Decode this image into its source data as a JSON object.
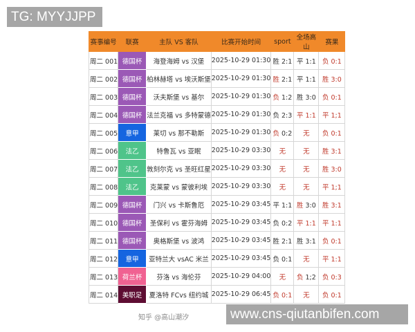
{
  "overlay_top": "TG: MYYJJPP",
  "overlay_bottom": "www.cns-qiutanbifen.com",
  "watermark": "知乎 @高山潮汐",
  "colors": {
    "header": "#f0892a",
    "highlight_text": "#c0392b"
  },
  "league_colors": {
    "德国杯": "#9b59b6",
    "意甲": "#1565e0",
    "法乙": "#4fc48a",
    "荷兰杯": "#f06292",
    "美职足": "#5e0d33"
  },
  "headers": [
    "赛事编号",
    "联赛",
    "主队 VS 客队",
    "比赛开始时间",
    "sport",
    "全场高山",
    "赛果"
  ],
  "rows": [
    {
      "id": "周二 001",
      "league": "德国杯",
      "match": "海登海姆 vs 汉堡",
      "time": "2025-10-29 01:30",
      "sport": {
        "p": "胜",
        "s": " 2:1",
        "hl": "none"
      },
      "full": {
        "p": "平",
        "s": " 1:1",
        "hl": "none"
      },
      "result": {
        "p": "负",
        "s": " 0:1",
        "hl": "all"
      }
    },
    {
      "id": "周二 002",
      "league": "德国杯",
      "match": "柏林赫塔 vs 埃沃斯堡",
      "time": "2025-10-29 01:30",
      "sport": {
        "p": "胜",
        "s": " 2:1",
        "hl": "prefix"
      },
      "full": {
        "p": "平",
        "s": " 1:1",
        "hl": "none"
      },
      "result": {
        "p": "胜",
        "s": " 3:0",
        "hl": "all"
      }
    },
    {
      "id": "周二 003",
      "league": "德国杯",
      "match": "沃夫斯堡 vs 基尔",
      "time": "2025-10-29 01:30",
      "sport": {
        "p": "负",
        "s": " 1:2",
        "hl": "prefix"
      },
      "full": {
        "p": "胜",
        "s": " 3:0",
        "hl": "none"
      },
      "result": {
        "p": "负",
        "s": " 0:1",
        "hl": "all"
      }
    },
    {
      "id": "周二 004",
      "league": "德国杯",
      "match": "法兰克福 vs 多特蒙德",
      "time": "2025-10-29 01:30",
      "sport": {
        "p": "负",
        "s": " 2:3",
        "hl": "none"
      },
      "full": {
        "p": "平",
        "s": " 1:1",
        "hl": "all"
      },
      "result": {
        "p": "平",
        "s": " 1;1",
        "hl": "all"
      }
    },
    {
      "id": "周二 005",
      "league": "意甲",
      "match": "莱切 vs 那不勒斯",
      "time": "2025-10-29 01:30",
      "sport": {
        "p": "负",
        "s": " 0:2",
        "hl": "prefix"
      },
      "full": {
        "p": "无",
        "s": "",
        "hl": "all"
      },
      "result": {
        "p": "负",
        "s": " 0:1",
        "hl": "all"
      }
    },
    {
      "id": "周二 006",
      "league": "法乙",
      "match": "特鲁瓦 vs 亚眠",
      "time": "2025-10-29 03:30",
      "sport": {
        "p": "无",
        "s": "",
        "hl": "all"
      },
      "full": {
        "p": "无",
        "s": "",
        "hl": "all"
      },
      "result": {
        "p": "胜",
        "s": " 3:1",
        "hl": "all"
      }
    },
    {
      "id": "周二 007",
      "league": "法乙",
      "match": "敦刻尔克 vs 圣旺红星",
      "time": "2025-10-29 03:30",
      "sport": {
        "p": "无",
        "s": "",
        "hl": "all"
      },
      "full": {
        "p": "无",
        "s": "",
        "hl": "all"
      },
      "result": {
        "p": "胜",
        "s": " 3:0",
        "hl": "all"
      }
    },
    {
      "id": "周二 008",
      "league": "法乙",
      "match": "克莱蒙 vs 蒙彼利埃",
      "time": "2025-10-29 03:30",
      "sport": {
        "p": "无",
        "s": "",
        "hl": "all"
      },
      "full": {
        "p": "无",
        "s": "",
        "hl": "all"
      },
      "result": {
        "p": "平",
        "s": " 1;1",
        "hl": "all"
      }
    },
    {
      "id": "周二 009",
      "league": "德国杯",
      "match": "门兴 vs 卡斯鲁厄",
      "time": "2025-10-29 03:45",
      "sport": {
        "p": "平",
        "s": " 1:1",
        "hl": "none"
      },
      "full": {
        "p": "胜",
        "s": " 3:0",
        "hl": "prefix"
      },
      "result": {
        "p": "胜",
        "s": " 3:1",
        "hl": "all"
      }
    },
    {
      "id": "周二 010",
      "league": "德国杯",
      "match": "圣保利 vs 霍芬海姆",
      "time": "2025-10-29 03:45",
      "sport": {
        "p": "负",
        "s": " 0:2",
        "hl": "none"
      },
      "full": {
        "p": "平",
        "s": " 1:1",
        "hl": "all"
      },
      "result": {
        "p": "平",
        "s": " 1:1",
        "hl": "all"
      }
    },
    {
      "id": "周二 011",
      "league": "德国杯",
      "match": "奥格斯堡 vs 波鸿",
      "time": "2025-10-29 03:45",
      "sport": {
        "p": "胜",
        "s": " 2:1",
        "hl": "none"
      },
      "full": {
        "p": "胜",
        "s": " 3:1",
        "hl": "none"
      },
      "result": {
        "p": "负",
        "s": " 0:1",
        "hl": "all"
      }
    },
    {
      "id": "周二 012",
      "league": "意甲",
      "match": "亚特兰大 vsAC 米兰",
      "time": "2025-10-29 03:45",
      "sport": {
        "p": "负",
        "s": " 0:1",
        "hl": "none"
      },
      "full": {
        "p": "无",
        "s": "",
        "hl": "all"
      },
      "result": {
        "p": "平",
        "s": " 1:1",
        "hl": "all"
      }
    },
    {
      "id": "周二 013",
      "league": "荷兰杯",
      "match": "芬洛 vs 海伦芬",
      "time": "2025-10-29 04:00",
      "sport": {
        "p": "无",
        "s": "",
        "hl": "all"
      },
      "full": {
        "p": "负",
        "s": " 1;2",
        "hl": "prefix"
      },
      "result": {
        "p": "负",
        "s": " 0:3",
        "hl": "all"
      }
    },
    {
      "id": "周二 014",
      "league": "美职足",
      "match": "夏洛特 FCvs 纽约城",
      "time": "2025-10-29 06:45",
      "sport": {
        "p": "负",
        "s": " 0:1",
        "hl": "all"
      },
      "full": {
        "p": "无",
        "s": "",
        "hl": "all"
      },
      "result": {
        "p": "负",
        "s": " 0:1",
        "hl": "all"
      }
    }
  ]
}
